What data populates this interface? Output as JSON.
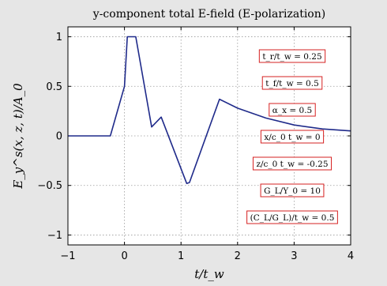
{
  "chart_data": {
    "type": "line",
    "title": "y-component total E-field (E-polarization)",
    "xlabel": "t/t_w",
    "ylabel": "E_y^s(x, z, t)/A_0",
    "xlim": [
      -1,
      4
    ],
    "ylim": [
      -1.1,
      1.1
    ],
    "xticks": [
      -1,
      0,
      1,
      2,
      3,
      4
    ],
    "yticks": [
      -1,
      -0.5,
      0,
      0.5,
      1
    ],
    "ytick_labels": [
      "−1",
      "−0.5",
      "0",
      "0.5",
      "1"
    ],
    "xtick_labels": [
      "−1",
      "0",
      "1",
      "2",
      "3",
      "4"
    ],
    "grid": true,
    "series": [
      {
        "color": "#1f2a8a",
        "x": [
          -1,
          -0.25,
          0,
          0.05,
          0.2,
          0.48,
          0.65,
          1.1,
          1.15,
          1.68,
          2.0,
          2.5,
          3.0,
          3.5,
          4.0
        ],
        "y": [
          0,
          0,
          0.5,
          1.0,
          1.0,
          0.09,
          0.19,
          -0.48,
          -0.47,
          0.37,
          0.28,
          0.18,
          0.11,
          0.07,
          0.05
        ]
      }
    ],
    "annotations": [
      "t_r/t_w = 0.25",
      "t_f/t_w = 0.5",
      "α_x = 0.5",
      "x/c_0 t_w = 0",
      "z/c_0 t_w = -0.25",
      "G_L/Y_0 = 10",
      "(C_L/G_L)/t_w = 0.5"
    ]
  }
}
